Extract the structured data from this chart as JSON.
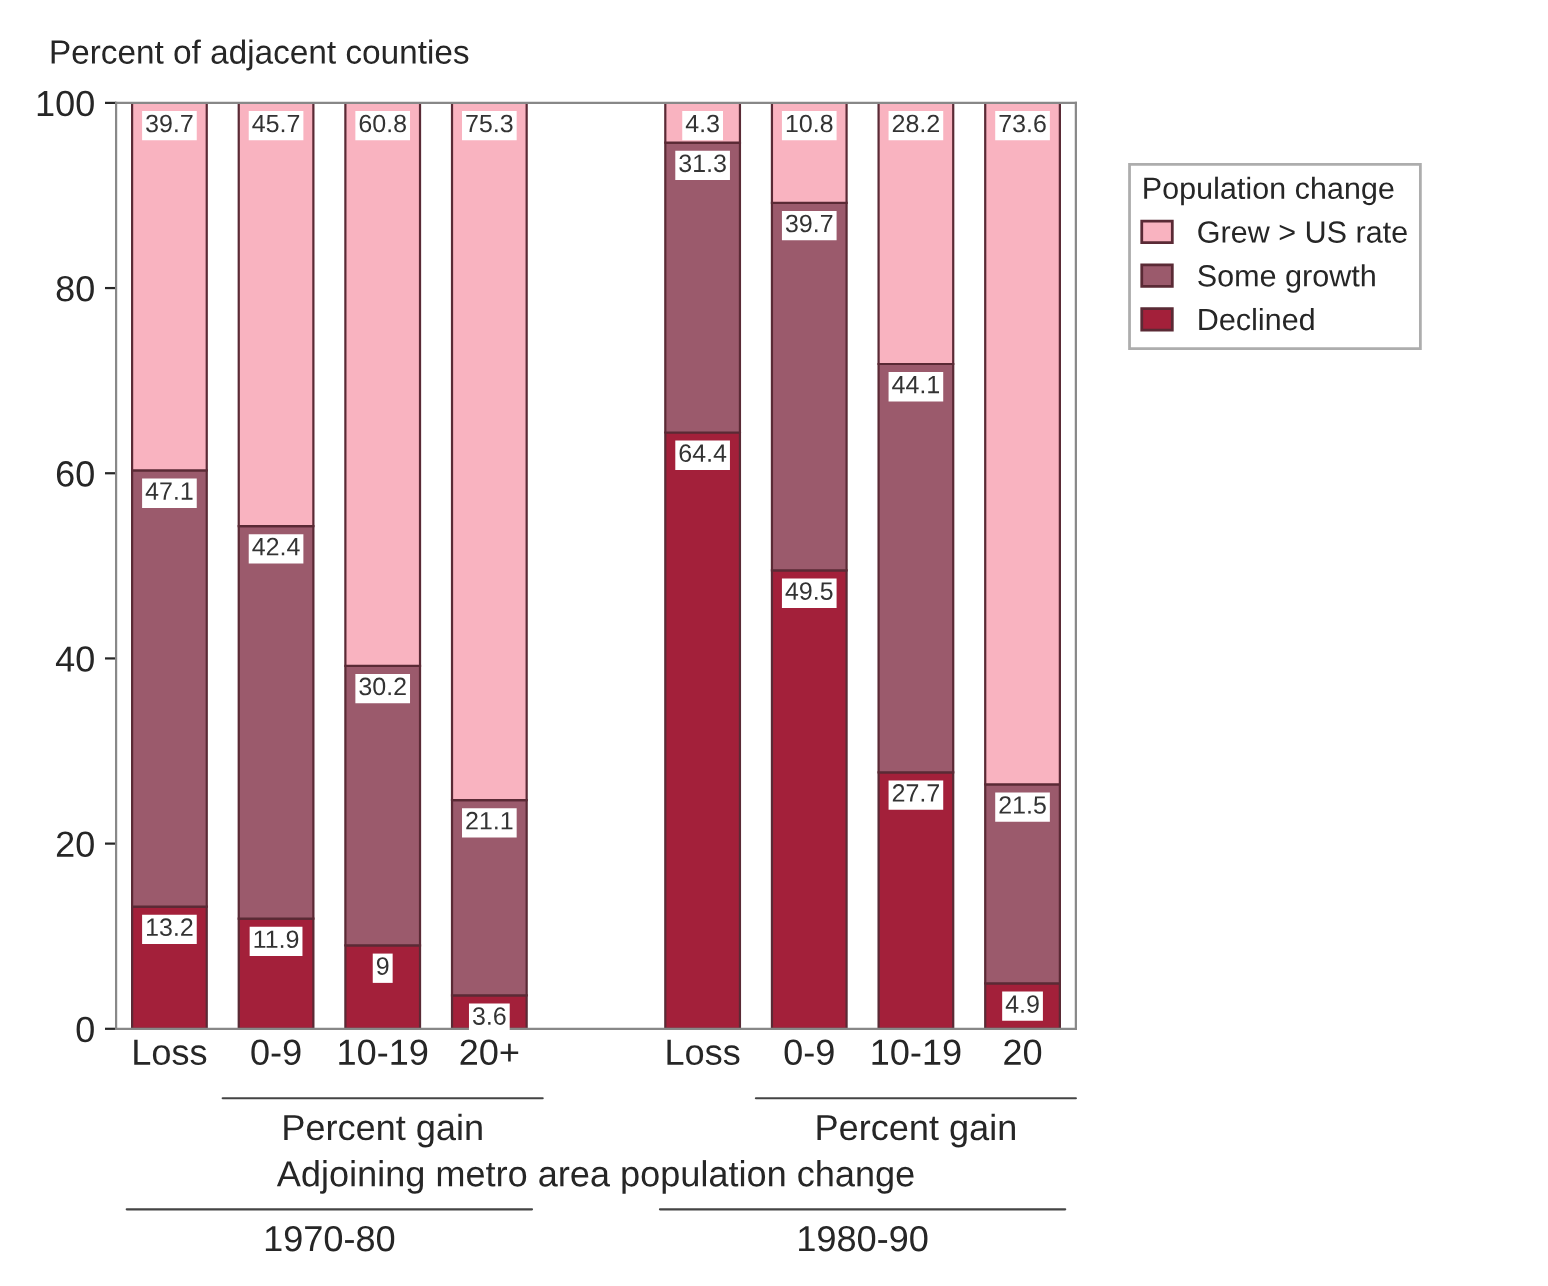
{
  "chart_data": {
    "type": "bar",
    "stacked": true,
    "ylabel": "Percent of adjacent counties",
    "legend_title": "Population change",
    "legend": "right",
    "grid": false,
    "data_labels": true,
    "categories": [
      "Loss",
      "0-9",
      "10-19",
      "20+",
      null,
      "Loss",
      "0-9",
      "10-19",
      "20"
    ],
    "ylim": [
      0,
      100
    ],
    "yticks": [
      0,
      20,
      40,
      60,
      80,
      100
    ],
    "series": [
      {
        "name": "Declined",
        "color": "#a3203a",
        "values": [
          13.2,
          11.9,
          9,
          3.6,
          null,
          64.4,
          49.5,
          27.7,
          4.9
        ]
      },
      {
        "name": "Some growth",
        "color": "#9b5a6c",
        "values": [
          47.1,
          42.4,
          30.2,
          21.1,
          null,
          31.3,
          39.7,
          44.1,
          21.5
        ]
      },
      {
        "name": "Grew > US rate",
        "color": "#f9b3c0",
        "values": [
          39.7,
          45.7,
          60.8,
          75.3,
          null,
          4.3,
          10.8,
          28.2,
          73.6
        ]
      }
    ],
    "annotations": [
      "Percent gain",
      "Percent gain",
      "Adjoining metro area population change",
      "1970-80",
      "1980-90"
    ]
  }
}
